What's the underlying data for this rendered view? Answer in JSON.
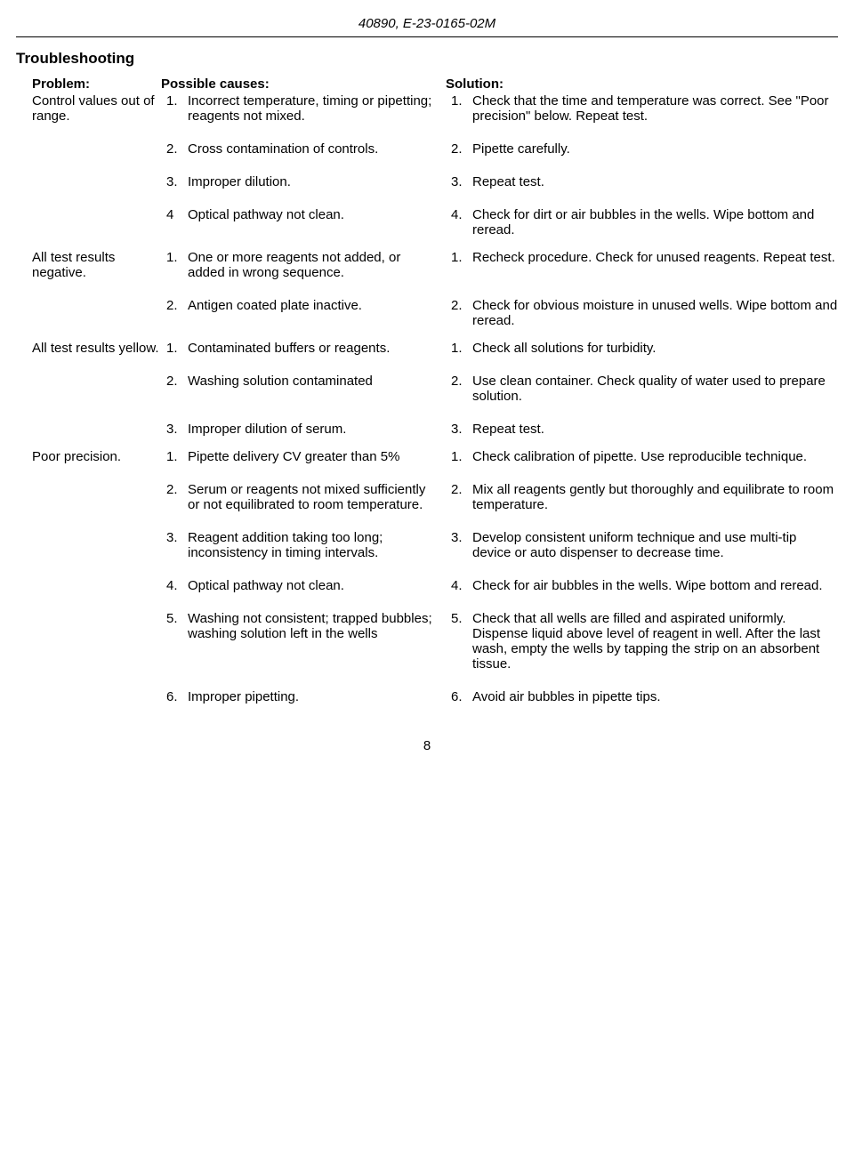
{
  "header_code": "40890, E-23-0165-02M",
  "section_title": "Troubleshooting",
  "col_labels": {
    "problem": "Problem:",
    "cause": "Possible causes:",
    "solution": "Solution:"
  },
  "groups": [
    {
      "problem": "Control values out of range.",
      "rows": [
        {
          "cn": "1.",
          "cause": "Incorrect temperature, timing or pipetting; reagents not mixed.",
          "sn": "1.",
          "solution": "Check that the time and temperature was correct. See \"Poor precision\" below. Repeat test."
        },
        {
          "cn": "2.",
          "cause": "Cross contamination of controls.",
          "sn": "2.",
          "solution": "Pipette carefully."
        },
        {
          "cn": "3.",
          "cause": "Improper dilution.",
          "sn": "3.",
          "solution": "Repeat test."
        },
        {
          "cn": "4",
          "cause": "Optical pathway not clean.",
          "sn": "4.",
          "solution": "Check for dirt or air bubbles in the wells. Wipe bottom and reread."
        }
      ]
    },
    {
      "problem": "All test results negative.",
      "rows": [
        {
          "cn": "1.",
          "cause": "One or more reagents not added, or added in wrong sequence.",
          "sn": "1.",
          "solution": "Recheck procedure. Check for unused reagents. Repeat test."
        },
        {
          "cn": "2.",
          "cause": "Antigen coated plate inactive.",
          "sn": "2.",
          "solution": "Check for obvious moisture in unused wells. Wipe bottom and reread."
        }
      ]
    },
    {
      "problem": "All test results yellow.",
      "rows": [
        {
          "cn": "1.",
          "cause": "Contaminated buffers or reagents.",
          "sn": "1.",
          "solution": "Check all solutions for turbidity."
        },
        {
          "cn": "2.",
          "cause": "Washing solution contaminated",
          "sn": "2.",
          "solution": "Use clean container. Check quality of water used to prepare solution."
        },
        {
          "cn": "3.",
          "cause": "Improper dilution of serum.",
          "sn": "3.",
          "solution": "Repeat test."
        }
      ]
    },
    {
      "problem": "Poor precision.",
      "rows": [
        {
          "cn": "1.",
          "cause": "Pipette delivery CV greater than 5%",
          "sn": "1.",
          "solution": "Check calibration of pipette. Use reproducible technique."
        },
        {
          "cn": "2.",
          "cause": "Serum or reagents not mixed sufficiently or not equilibrated to room temperature.",
          "sn": "2.",
          "solution": "Mix all reagents gently but thoroughly and equilibrate to room temperature."
        },
        {
          "cn": "3.",
          "cause": "Reagent addition taking too long; inconsistency in timing intervals.",
          "sn": "3.",
          "solution": "Develop consistent uniform technique and use multi-tip device or auto dispenser to decrease time."
        },
        {
          "cn": "4.",
          "cause": "Optical pathway not clean.",
          "sn": "4.",
          "solution": "Check for air bubbles in the wells. Wipe bottom and reread."
        },
        {
          "cn": "5.",
          "cause": "Washing not consistent; trapped bubbles; washing solution left in the wells",
          "sn": "5.",
          "solution": "Check that all wells are filled and aspirated uniformly. Dispense liquid above level of reagent in well. After the last wash, empty the wells by tapping the strip on an absorbent tissue."
        },
        {
          "cn": "6.",
          "cause": "Improper pipetting.",
          "sn": "6.",
          "solution": "Avoid air bubbles in pipette tips."
        }
      ]
    }
  ],
  "page_number": "8"
}
